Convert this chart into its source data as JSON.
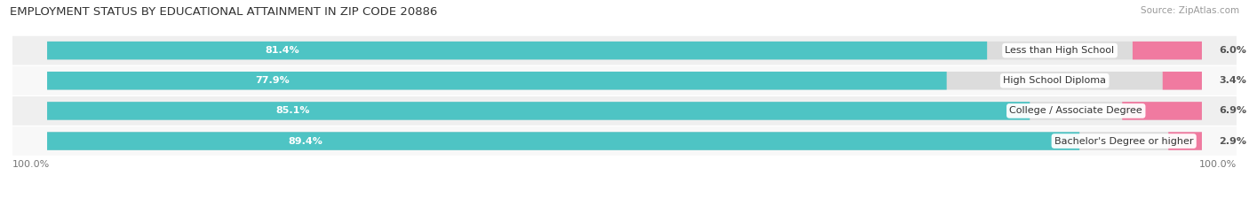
{
  "title": "EMPLOYMENT STATUS BY EDUCATIONAL ATTAINMENT IN ZIP CODE 20886",
  "source": "Source: ZipAtlas.com",
  "categories": [
    "Less than High School",
    "High School Diploma",
    "College / Associate Degree",
    "Bachelor's Degree or higher"
  ],
  "labor_force": [
    81.4,
    77.9,
    85.1,
    89.4
  ],
  "unemployed": [
    6.0,
    3.4,
    6.9,
    2.9
  ],
  "labor_force_color": "#4EC4C4",
  "unemployed_color": "#F07AA0",
  "row_bg_even": "#EFEFEF",
  "row_bg_odd": "#F8F8F8",
  "bar_bg_color": "#DCDCDC",
  "title_fontsize": 9.5,
  "source_fontsize": 7.5,
  "label_fontsize": 8,
  "pct_fontsize": 8,
  "tick_fontsize": 8,
  "x_left_label": "100.0%",
  "x_right_label": "100.0%"
}
